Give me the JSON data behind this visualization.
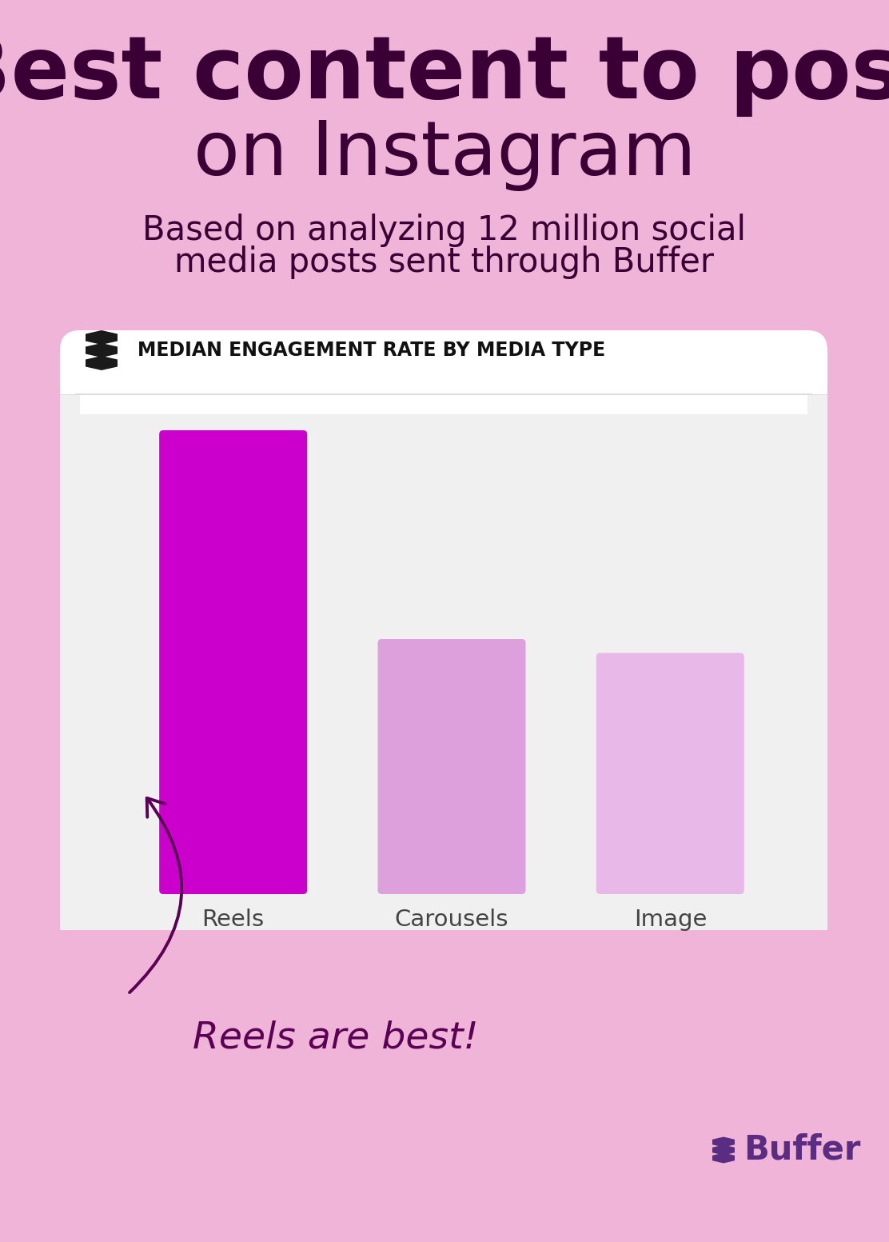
{
  "background_color": "#f0b4d8",
  "title_line1": "Best content to post",
  "title_line2": "on Instagram",
  "subtitle_line1": "Based on analyzing 12 million social",
  "subtitle_line2": "media posts sent through Buffer",
  "title_color": "#3a0035",
  "subtitle_color": "#3a0035",
  "chart_header_bg": "#ffffff",
  "chart_body_bg": "#f0f0f0",
  "chart_title": "MEDIAN ENGAGEMENT RATE BY MEDIA TYPE",
  "categories": [
    "Reels",
    "Carousels",
    "Image"
  ],
  "values": [
    1.0,
    0.55,
    0.52
  ],
  "bar_colors": [
    "#cc00cc",
    "#dda0dd",
    "#e8b8e8"
  ],
  "bar_label_color": "#555555",
  "annotation_text": "Reels are best!",
  "annotation_color": "#5a0055",
  "buffer_logo_color": "#5a2d82"
}
